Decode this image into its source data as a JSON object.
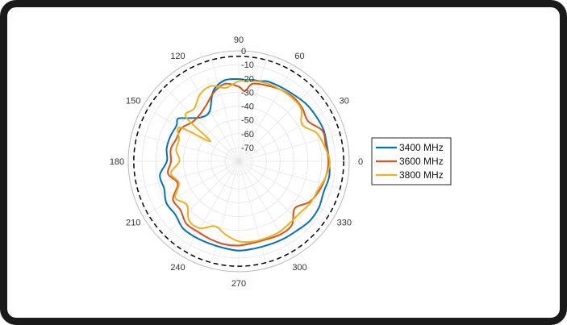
{
  "chart_data": {
    "type": "polar",
    "angle_ticks": [
      "0",
      "30",
      "60",
      "90",
      "120",
      "150",
      "180",
      "210",
      "240",
      "270",
      "300",
      "330"
    ],
    "radial_ticks": [
      "0",
      "-10",
      "-20",
      "-30",
      "-40",
      "-50",
      "-60",
      "-70"
    ],
    "rlim": [
      -80,
      0
    ],
    "grid": true,
    "reference_circle": {
      "value_db": -4,
      "style": "dashed",
      "color": "#000000"
    },
    "legend_position": "right",
    "series": [
      {
        "name": "3400 MHz",
        "color": "#0072BD",
        "angles_deg": [
          0,
          10,
          20,
          30,
          40,
          50,
          60,
          70,
          75,
          80,
          85,
          90,
          100,
          110,
          120,
          130,
          140,
          145,
          150,
          160,
          170,
          180,
          190,
          200,
          210,
          220,
          230,
          240,
          250,
          260,
          270,
          280,
          290,
          300,
          310,
          320,
          330,
          340,
          350
        ],
        "values_db": [
          -14.4,
          -15.2,
          -14.5,
          -15.2,
          -15.9,
          -17.4,
          -18.2,
          -18.5,
          -20,
          -20.2,
          -21,
          -20.5,
          -20.5,
          -26,
          -38,
          -38.3,
          -31.4,
          -26.2,
          -28,
          -27.3,
          -27,
          -28,
          -22,
          -22.5,
          -19.5,
          -20,
          -16.9,
          -16.7,
          -16.8,
          -16.3,
          -15.3,
          -15.8,
          -15.8,
          -15.2,
          -14.5,
          -12.9,
          -13,
          -14.6,
          -13.6
        ]
      },
      {
        "name": "3600 MHz",
        "color": "#D95319",
        "angles_deg": [
          0,
          10,
          20,
          30,
          40,
          50,
          60,
          70,
          80,
          85,
          90,
          100,
          110,
          120,
          130,
          140,
          150,
          160,
          170,
          180,
          190,
          200,
          210,
          220,
          230,
          240,
          250,
          260,
          270,
          280,
          290,
          300,
          310,
          320,
          330,
          340,
          350
        ],
        "values_db": [
          -15,
          -16,
          -15.5,
          -22,
          -20,
          -19,
          -20,
          -21.5,
          -23,
          -29,
          -26,
          -23,
          -27,
          -33,
          -36,
          -36,
          -32,
          -32,
          -30,
          -31,
          -28,
          -33,
          -25,
          -25,
          -21,
          -21,
          -20,
          -19,
          -19,
          -20,
          -20,
          -19,
          -20,
          -27,
          -21,
          -18,
          -16
        ]
      },
      {
        "name": "3800 MHz",
        "color": "#EDB120",
        "angles_deg": [
          0,
          10,
          20,
          30,
          40,
          50,
          60,
          70,
          80,
          90,
          100,
          110,
          120,
          130,
          140,
          145,
          150,
          160,
          170,
          180,
          190,
          200,
          210,
          220,
          230,
          240,
          250,
          260,
          270,
          280,
          290,
          300,
          310,
          320,
          330,
          340,
          350
        ],
        "values_db": [
          -14,
          -17,
          -20,
          -27,
          -21,
          -20,
          -20,
          -20,
          -21,
          -22,
          -26,
          -22,
          -24,
          -30,
          -30,
          -55,
          -31,
          -34,
          -34,
          -37,
          -30,
          -34,
          -27,
          -31,
          -24,
          -24,
          -30,
          -26,
          -22,
          -21,
          -21,
          -21,
          -22,
          -22,
          -20,
          -19,
          -16
        ]
      }
    ]
  }
}
